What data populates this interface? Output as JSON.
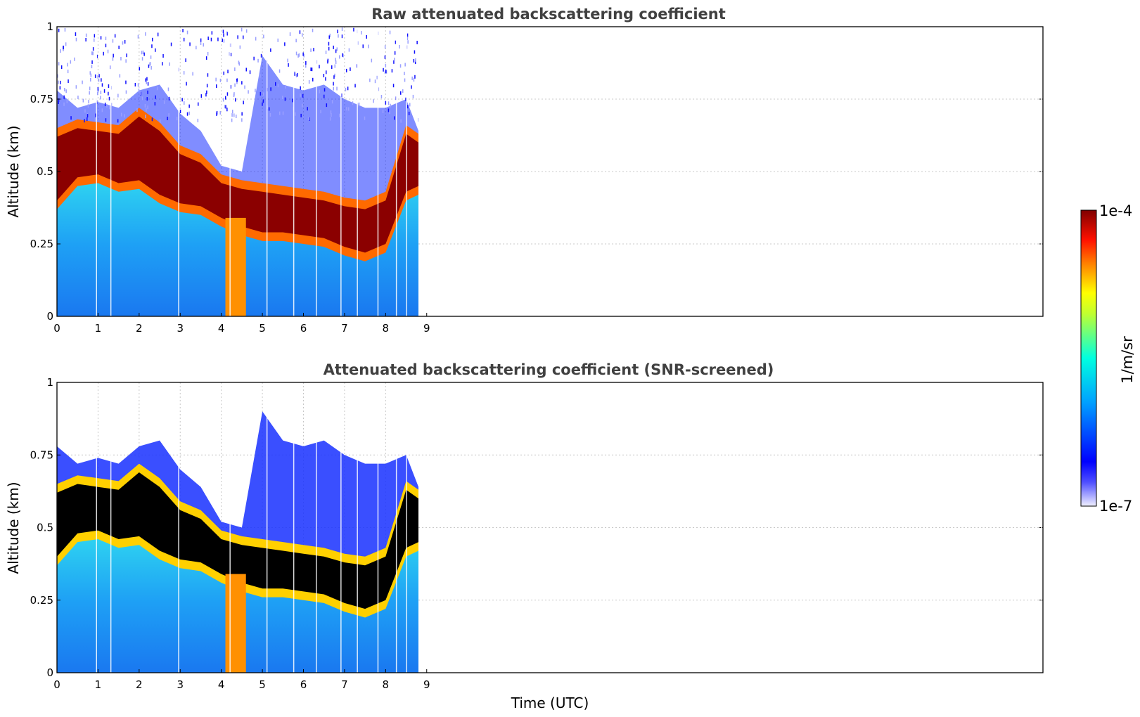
{
  "chart_data": [
    {
      "type": "heatmap",
      "title": "Raw attenuated backscattering coefficient",
      "xlabel": "",
      "ylabel": "Altitude (km)",
      "xlim": [
        0,
        24
      ],
      "ylim": [
        0,
        1
      ],
      "x_ticks": [
        "0",
        "1",
        "2",
        "3",
        "4",
        "5",
        "6",
        "7",
        "8",
        "9"
      ],
      "y_ticks": [
        "0",
        "0.25",
        "0.5",
        "0.75",
        "1"
      ],
      "y_tick_values": [
        0,
        0.25,
        0.5,
        0.75,
        1
      ],
      "data_extent_hours": 8.8,
      "grid": true,
      "screened": false,
      "layer_profile": {
        "time_utc": [
          0,
          0.5,
          1,
          1.5,
          2,
          2.5,
          3,
          3.5,
          4,
          4.5,
          5,
          5.5,
          6,
          6.5,
          7,
          7.5,
          8,
          8.5,
          8.8
        ],
        "layer_top_km": [
          0.62,
          0.65,
          0.64,
          0.63,
          0.69,
          0.64,
          0.56,
          0.53,
          0.46,
          0.44,
          0.43,
          0.42,
          0.41,
          0.4,
          0.38,
          0.37,
          0.4,
          0.63,
          0.6
        ],
        "layer_bottom_km": [
          0.4,
          0.48,
          0.49,
          0.46,
          0.47,
          0.42,
          0.39,
          0.38,
          0.34,
          0.31,
          0.29,
          0.29,
          0.28,
          0.27,
          0.24,
          0.22,
          0.25,
          0.43,
          0.45
        ],
        "signal_top_km": [
          0.78,
          0.72,
          0.74,
          0.72,
          0.78,
          0.8,
          0.7,
          0.64,
          0.52,
          0.5,
          0.9,
          0.8,
          0.78,
          0.8,
          0.75,
          0.72,
          0.72,
          0.75,
          0.64
        ]
      }
    },
    {
      "type": "heatmap",
      "title": "Attenuated backscattering coefficient (SNR-screened)",
      "xlabel": "Time (UTC)",
      "ylabel": "Altitude (km)",
      "xlim": [
        0,
        24
      ],
      "ylim": [
        0,
        1
      ],
      "x_ticks": [
        "0",
        "1",
        "2",
        "3",
        "4",
        "5",
        "6",
        "7",
        "8",
        "9"
      ],
      "y_ticks": [
        "0",
        "0.25",
        "0.5",
        "0.75",
        "1"
      ],
      "y_tick_values": [
        0,
        0.25,
        0.5,
        0.75,
        1
      ],
      "data_extent_hours": 8.8,
      "grid": true,
      "screened": true,
      "layer_profile": {
        "time_utc": [
          0,
          0.5,
          1,
          1.5,
          2,
          2.5,
          3,
          3.5,
          4,
          4.5,
          5,
          5.5,
          6,
          6.5,
          7,
          7.5,
          8,
          8.5,
          8.8
        ],
        "layer_top_km": [
          0.62,
          0.65,
          0.64,
          0.63,
          0.69,
          0.64,
          0.56,
          0.53,
          0.46,
          0.44,
          0.43,
          0.42,
          0.41,
          0.4,
          0.38,
          0.37,
          0.4,
          0.63,
          0.6
        ],
        "layer_bottom_km": [
          0.4,
          0.48,
          0.49,
          0.46,
          0.47,
          0.42,
          0.39,
          0.38,
          0.34,
          0.31,
          0.29,
          0.29,
          0.28,
          0.27,
          0.24,
          0.22,
          0.25,
          0.43,
          0.45
        ],
        "signal_top_km": [
          0.78,
          0.72,
          0.74,
          0.72,
          0.78,
          0.8,
          0.7,
          0.64,
          0.52,
          0.5,
          0.9,
          0.8,
          0.78,
          0.8,
          0.75,
          0.72,
          0.72,
          0.75,
          0.64
        ]
      }
    }
  ],
  "colorbar": {
    "label": "1/m/sr",
    "max_label": "1e-4",
    "min_label": "1e-7",
    "scale": "log",
    "colormap": "jet",
    "colors": [
      "#f0f0ff",
      "#0000ff",
      "#00a0ff",
      "#00ffff",
      "#ffff00",
      "#ff8000",
      "#ff0000",
      "#800000"
    ]
  }
}
